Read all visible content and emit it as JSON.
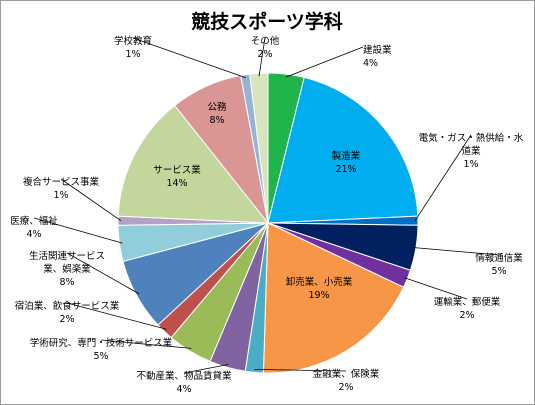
{
  "chart_data": {
    "type": "pie",
    "title": "競技スポーツ学科",
    "start_angle_deg": 0,
    "direction": "clockwise",
    "slices": [
      {
        "label": "建設業",
        "value": 4,
        "color": "#20b44a"
      },
      {
        "label": "製造業",
        "value": 21,
        "color": "#00aeef"
      },
      {
        "label": "電気・ガス・熱供給・水道業",
        "value": 1,
        "color": "#0070c0"
      },
      {
        "label": "情報通信業",
        "value": 5,
        "color": "#002060"
      },
      {
        "label": "運輸業、郵便業",
        "value": 2,
        "color": "#7030a0"
      },
      {
        "label": "卸売業、小売業",
        "value": 19,
        "color": "#f79646"
      },
      {
        "label": "金融業、保険業",
        "value": 2,
        "color": "#4bacc6"
      },
      {
        "label": "不動産業、物品賃貸業",
        "value": 4,
        "color": "#8064a2"
      },
      {
        "label": "学術研究、専門・技術サービス業",
        "value": 5,
        "color": "#9bbb59"
      },
      {
        "label": "宿泊業、飲食サービス業",
        "value": 2,
        "color": "#c0504d"
      },
      {
        "label": "生活関連サービス業、娯楽業",
        "value": 8,
        "color": "#4f81bd"
      },
      {
        "label": "医療、福祉",
        "value": 4,
        "color": "#92cddc"
      },
      {
        "label": "複合サービス事業",
        "value": 1,
        "color": "#b3a2c7"
      },
      {
        "label": "サービス業",
        "value": 14,
        "color": "#c3d69b"
      },
      {
        "label": "公務",
        "value": 8,
        "color": "#d99694"
      },
      {
        "label": "学校教育",
        "value": 1,
        "color": "#95b3d7"
      },
      {
        "label": "その他",
        "value": 2,
        "color": "#d7e4bd"
      }
    ]
  }
}
